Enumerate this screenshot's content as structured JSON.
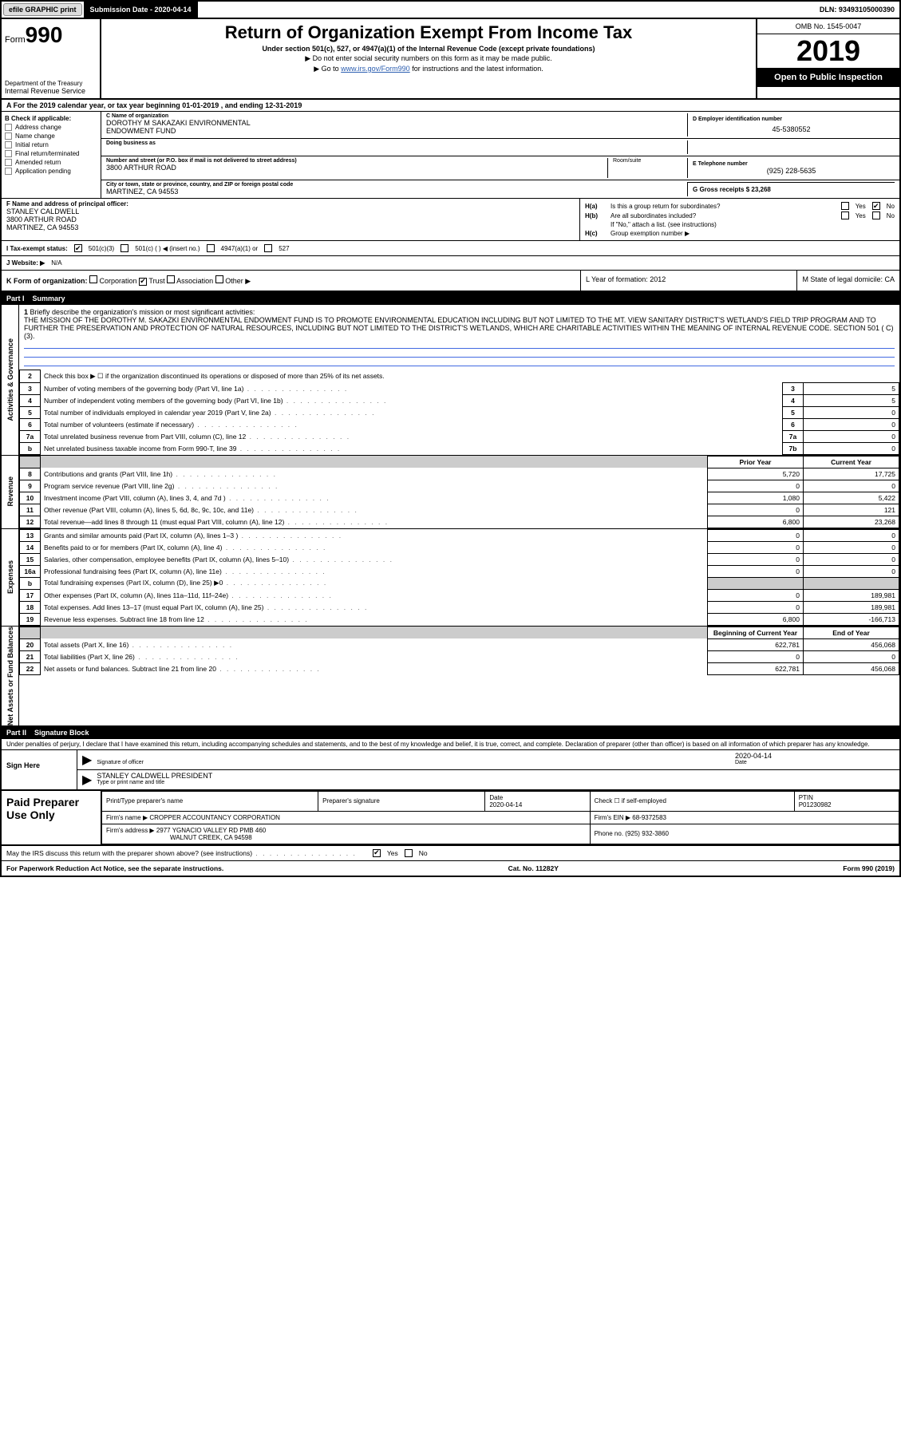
{
  "topbar": {
    "efile": "efile GRAPHIC print",
    "sub_date_label": "Submission Date - 2020-04-14",
    "dln": "DLN: 93493105000390"
  },
  "header": {
    "form_prefix": "Form",
    "form_num": "990",
    "dept": "Department of the Treasury",
    "irs": "Internal Revenue Service",
    "title": "Return of Organization Exempt From Income Tax",
    "sub": "Under section 501(c), 527, or 4947(a)(1) of the Internal Revenue Code (except private foundations)",
    "note": "▶ Do not enter social security numbers on this form as it may be made public.",
    "link_pre": "▶ Go to ",
    "link": "www.irs.gov/Form990",
    "link_post": " for instructions and the latest information.",
    "omb": "OMB No. 1545-0047",
    "year": "2019",
    "open": "Open to Public Inspection"
  },
  "rowA": "A   For the 2019 calendar year, or tax year beginning 01-01-2019     , and ending 12-31-2019",
  "secB": {
    "title": "B Check if applicable:",
    "opts": [
      "Address change",
      "Name change",
      "Initial return",
      "Final return/terminated",
      "Amended return",
      "Application pending"
    ],
    "c_label": "C Name of organization",
    "org1": "DOROTHY M SAKAZAKI ENVIRONMENTAL",
    "org2": "ENDOWMENT FUND",
    "dba_lbl": "Doing business as",
    "addr_lbl": "Number and street (or P.O. box if mail is not delivered to street address)",
    "addr": "3800 ARTHUR ROAD",
    "room_lbl": "Room/suite",
    "city_lbl": "City or town, state or province, country, and ZIP or foreign postal code",
    "city": "MARTINEZ, CA  94553",
    "d_lbl": "D Employer identification number",
    "d_val": "45-5380552",
    "e_lbl": "E Telephone number",
    "e_val": "(925) 228-5635",
    "g_lbl": "G Gross receipts $ 23,268"
  },
  "secF": {
    "f_lbl": "F  Name and address of principal officer:",
    "f1": "STANLEY CALDWELL",
    "f2": "3800 ARTHUR ROAD",
    "f3": "MARTINEZ, CA  94553",
    "ha_lbl": "H(a)",
    "ha_txt": "Is this a group return for subordinates?",
    "hb_lbl": "H(b)",
    "hb_txt": "Are all subordinates included?",
    "hb_note": "If \"No,\" attach a list. (see instructions)",
    "hc_lbl": "H(c)",
    "hc_txt": "Group exemption number ▶",
    "yes": "Yes",
    "no": "No"
  },
  "rowI": {
    "i_lbl": "I    Tax-exempt status:",
    "i_501c3": "501(c)(3)",
    "i_501c": "501(c) (   ) ◀ (insert no.)",
    "i_4947": "4947(a)(1) or",
    "i_527": "527"
  },
  "rowJ": {
    "lbl": "J   Website: ▶",
    "val": "N/A"
  },
  "rowK": {
    "lbl": "K Form of organization:",
    "opts": [
      "Corporation",
      "Trust",
      "Association",
      "Other ▶"
    ]
  },
  "rowLM": {
    "l_lbl": "L Year of formation: 2012",
    "m_lbl": "M State of legal domicile: CA"
  },
  "part1": {
    "num": "Part I",
    "title": "Summary"
  },
  "mission": {
    "q1_lbl": "1",
    "q1_txt": "Briefly describe the organization's mission or most significant activities:",
    "text": "THE MISSION OF THE DOROTHY M. SAKAZKI ENVIRONMENTAL ENDOWMENT FUND IS TO PROMOTE ENVIRONMENTAL EDUCATION INCLUDING BUT NOT LIMITED TO THE MT. VIEW SANITARY DISTRICT'S WETLAND'S FIELD TRIP PROGRAM AND TO FURTHER THE PRESERVATION AND PROTECTION OF NATURAL RESOURCES, INCLUDING BUT NOT LIMITED TO THE DISTRICT'S WETLANDS, WHICH ARE CHARITABLE ACTIVITIES WITHIN THE MEANING OF INTERNAL REVENUE CODE. SECTION 501 ( C) (3)."
  },
  "gov_rows": [
    {
      "n": "2",
      "d": "Check this box ▶ ☐ if the organization discontinued its operations or disposed of more than 25% of its net assets.",
      "box": "",
      "v": ""
    },
    {
      "n": "3",
      "d": "Number of voting members of the governing body (Part VI, line 1a)",
      "box": "3",
      "v": "5"
    },
    {
      "n": "4",
      "d": "Number of independent voting members of the governing body (Part VI, line 1b)",
      "box": "4",
      "v": "5"
    },
    {
      "n": "5",
      "d": "Total number of individuals employed in calendar year 2019 (Part V, line 2a)",
      "box": "5",
      "v": "0"
    },
    {
      "n": "6",
      "d": "Total number of volunteers (estimate if necessary)",
      "box": "6",
      "v": "0"
    },
    {
      "n": "7a",
      "d": "Total unrelated business revenue from Part VIII, column (C), line 12",
      "box": "7a",
      "v": "0"
    },
    {
      "n": "b",
      "d": "Net unrelated business taxable income from Form 990-T, line 39",
      "box": "7b",
      "v": "0"
    }
  ],
  "rev_hdr": {
    "py": "Prior Year",
    "cy": "Current Year"
  },
  "rev_rows": [
    {
      "n": "8",
      "d": "Contributions and grants (Part VIII, line 1h)",
      "py": "5,720",
      "cy": "17,725"
    },
    {
      "n": "9",
      "d": "Program service revenue (Part VIII, line 2g)",
      "py": "0",
      "cy": "0"
    },
    {
      "n": "10",
      "d": "Investment income (Part VIII, column (A), lines 3, 4, and 7d )",
      "py": "1,080",
      "cy": "5,422"
    },
    {
      "n": "11",
      "d": "Other revenue (Part VIII, column (A), lines 5, 6d, 8c, 9c, 10c, and 11e)",
      "py": "0",
      "cy": "121"
    },
    {
      "n": "12",
      "d": "Total revenue—add lines 8 through 11 (must equal Part VIII, column (A), line 12)",
      "py": "6,800",
      "cy": "23,268"
    }
  ],
  "exp_rows": [
    {
      "n": "13",
      "d": "Grants and similar amounts paid (Part IX, column (A), lines 1–3 )",
      "py": "0",
      "cy": "0"
    },
    {
      "n": "14",
      "d": "Benefits paid to or for members (Part IX, column (A), line 4)",
      "py": "0",
      "cy": "0"
    },
    {
      "n": "15",
      "d": "Salaries, other compensation, employee benefits (Part IX, column (A), lines 5–10)",
      "py": "0",
      "cy": "0"
    },
    {
      "n": "16a",
      "d": "Professional fundraising fees (Part IX, column (A), line 11e)",
      "py": "0",
      "cy": "0"
    },
    {
      "n": "b",
      "d": "Total fundraising expenses (Part IX, column (D), line 25) ▶0",
      "py": "",
      "cy": "",
      "grey": true
    },
    {
      "n": "17",
      "d": "Other expenses (Part IX, column (A), lines 11a–11d, 11f–24e)",
      "py": "0",
      "cy": "189,981"
    },
    {
      "n": "18",
      "d": "Total expenses. Add lines 13–17 (must equal Part IX, column (A), line 25)",
      "py": "0",
      "cy": "189,981"
    },
    {
      "n": "19",
      "d": "Revenue less expenses. Subtract line 18 from line 12",
      "py": "6,800",
      "cy": "-166,713"
    }
  ],
  "na_hdr": {
    "b": "Beginning of Current Year",
    "e": "End of Year"
  },
  "na_rows": [
    {
      "n": "20",
      "d": "Total assets (Part X, line 16)",
      "py": "622,781",
      "cy": "456,068"
    },
    {
      "n": "21",
      "d": "Total liabilities (Part X, line 26)",
      "py": "0",
      "cy": "0"
    },
    {
      "n": "22",
      "d": "Net assets or fund balances. Subtract line 21 from line 20",
      "py": "622,781",
      "cy": "456,068"
    }
  ],
  "part2": {
    "num": "Part II",
    "title": "Signature Block"
  },
  "sig": {
    "perjury": "Under penalties of perjury, I declare that I have examined this return, including accompanying schedules and statements, and to the best of my knowledge and belief, it is true, correct, and complete. Declaration of preparer (other than officer) is based on all information of which preparer has any knowledge.",
    "sign_here": "Sign Here",
    "sig_officer_lbl": "Signature of officer",
    "date_lbl": "Date",
    "date": "2020-04-14",
    "name": "STANLEY CALDWELL  PRESIDENT",
    "name_lbl": "Type or print name and title"
  },
  "paid": {
    "title": "Paid Preparer Use Only",
    "h1": "Print/Type preparer's name",
    "h2": "Preparer's signature",
    "h3": "Date",
    "h3v": "2020-04-14",
    "h4": "Check ☐ if self-employed",
    "h5": "PTIN",
    "h5v": "P01230982",
    "firm_lbl": "Firm's name    ▶",
    "firm": "CROPPER ACCOUNTANCY CORPORATION",
    "ein_lbl": "Firm's EIN ▶",
    "ein": "68-9372583",
    "addr_lbl": "Firm's address ▶",
    "addr1": "2977 YGNACIO VALLEY RD PMB 460",
    "addr2": "WALNUT CREEK, CA  94598",
    "ph_lbl": "Phone no.",
    "ph": "(925) 932-3860"
  },
  "footer": {
    "q": "May the IRS discuss this return with the preparer shown above? (see instructions)",
    "yes": "Yes",
    "no": "No",
    "pra": "For Paperwork Reduction Act Notice, see the separate instructions.",
    "cat": "Cat. No. 11282Y",
    "form": "Form 990 (2019)"
  },
  "sections": {
    "gov": "Activities & Governance",
    "rev": "Revenue",
    "exp": "Expenses",
    "na": "Net Assets or Fund Balances"
  }
}
